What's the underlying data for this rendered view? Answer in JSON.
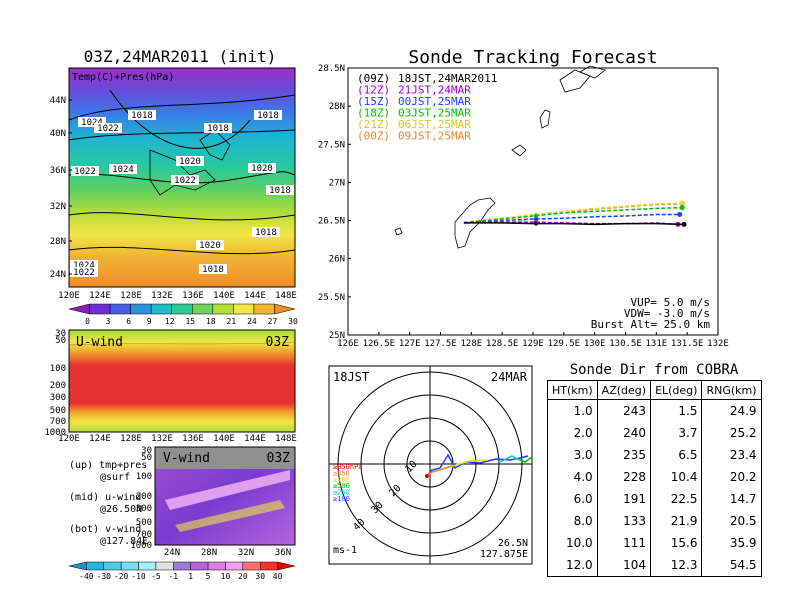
{
  "left_panel": {
    "title": "03Z,24MAR2011 (init)",
    "top_map": {
      "inner_label": "Temp(C)+Pres(hPa)",
      "lat_ticks": [
        "44N",
        "40N",
        "36N",
        "32N",
        "28N",
        "24N"
      ],
      "lon_ticks": [
        "120E",
        "124E",
        "128E",
        "132E",
        "136E",
        "140E",
        "144E",
        "148E"
      ],
      "colorbar_ticks": [
        "0",
        "3",
        "6",
        "9",
        "12",
        "15",
        "18",
        "21",
        "24",
        "27",
        "30"
      ],
      "isobar_labels": [
        "1024",
        "1022",
        "1018",
        "1018",
        "1018",
        "1020",
        "1020",
        "1022",
        "1024",
        "1022",
        "1018",
        "1020",
        "1018",
        "1024",
        "1022",
        "1018"
      ]
    },
    "u_wind": {
      "label": "U-wind",
      "time": "03Z",
      "p_ticks": [
        "30",
        "50",
        "100",
        "200",
        "300",
        "500",
        "700",
        "1000"
      ],
      "lon_ticks": [
        "120E",
        "124E",
        "128E",
        "132E",
        "136E",
        "140E",
        "144E",
        "148E"
      ]
    },
    "v_wind": {
      "label": "V-wind",
      "time": "03Z",
      "p_ticks": [
        "30",
        "50",
        "100",
        "200",
        "300",
        "500",
        "700",
        "1000"
      ],
      "lat_ticks": [
        "24N",
        "28N",
        "32N",
        "36N"
      ],
      "colorbar_ticks": [
        "-40",
        "-30",
        "-20",
        "-10",
        "-5",
        "-1",
        "1",
        "5",
        "10",
        "20",
        "30",
        "40"
      ]
    },
    "legend_notes": [
      {
        "a": "(up) tmp+pres",
        "b": "@surf"
      },
      {
        "a": "(mid) u-wind",
        "b": "@26.50N"
      },
      {
        "a": "(bot) v-wind",
        "b": "@127.84E"
      }
    ]
  },
  "chart_data": [
    {
      "type": "line",
      "title": "Sonde Tracking Forecast",
      "xlabel": "",
      "ylabel": "",
      "xlim": [
        126,
        132
      ],
      "ylim": [
        25,
        28.5
      ],
      "x_ticks": [
        "126E",
        "126.5E",
        "127E",
        "127.5E",
        "128E",
        "128.5E",
        "129E",
        "129.5E",
        "130E",
        "130.5E",
        "131E",
        "131.5E",
        "132E"
      ],
      "y_ticks": [
        "25N",
        "25.5N",
        "26N",
        "26.5N",
        "27N",
        "27.5N",
        "28N",
        "28.5N"
      ],
      "legend": [
        {
          "code": "(09Z)",
          "time": "18JST,24MAR2011",
          "color": "#000000"
        },
        {
          "code": "(12Z)",
          "time": "21JST,24MAR",
          "color": "#a000c8"
        },
        {
          "code": "(15Z)",
          "time": "00JST,25MAR",
          "color": "#1e3cff"
        },
        {
          "code": "(18Z)",
          "time": "03JST,25MAR",
          "color": "#00c000"
        },
        {
          "code": "(21Z)",
          "time": "06JST,25MAR",
          "color": "#e6dc32"
        },
        {
          "code": "(00Z)",
          "time": "09JST,25MAR",
          "color": "#f08228"
        }
      ],
      "series": [
        {
          "name": "(09Z)",
          "color": "#000000",
          "x": [
            127.88,
            128.5,
            129.0,
            129.5,
            130.0,
            130.5,
            131.0,
            131.45
          ],
          "y": [
            26.47,
            26.47,
            26.46,
            26.46,
            26.45,
            26.46,
            26.46,
            26.45
          ]
        },
        {
          "name": "(12Z)",
          "color": "#a000c8",
          "x": [
            127.88,
            128.5,
            129.0,
            129.5,
            130.0,
            130.5,
            131.0,
            131.35
          ],
          "y": [
            26.47,
            26.48,
            26.48,
            26.47,
            26.46,
            26.46,
            26.47,
            26.45
          ]
        },
        {
          "name": "(15Z)",
          "color": "#1e3cff",
          "x": [
            127.88,
            128.5,
            129.0,
            129.5,
            130.0,
            130.5,
            131.0,
            131.38
          ],
          "y": [
            26.47,
            26.5,
            26.52,
            26.53,
            26.55,
            26.56,
            26.58,
            26.58
          ]
        },
        {
          "name": "(18Z)",
          "color": "#00c000",
          "x": [
            127.88,
            128.5,
            129.0,
            129.5,
            130.0,
            130.5,
            131.0,
            131.42
          ],
          "y": [
            26.47,
            26.52,
            26.56,
            26.6,
            26.62,
            26.64,
            26.66,
            26.67
          ]
        },
        {
          "name": "(21Z)",
          "color": "#e6dc32",
          "x": [
            127.88,
            128.5,
            129.0,
            129.5,
            130.0,
            130.5,
            131.0,
            131.42
          ],
          "y": [
            26.48,
            26.53,
            26.58,
            26.62,
            26.66,
            26.69,
            26.72,
            26.73
          ]
        },
        {
          "name": "(00Z)",
          "color": "#f08228",
          "x": [
            127.88,
            128.5,
            129.0,
            129.5,
            130.0,
            130.5,
            131.0,
            131.42
          ],
          "y": [
            26.48,
            26.53,
            26.57,
            26.61,
            26.65,
            26.68,
            26.71,
            26.72
          ]
        }
      ],
      "annotations": {
        "vup": "VUP=  5.0  m/s",
        "vdw": "VDW= -3.0  m/s",
        "burst": "Burst Alt=  25.0  km"
      }
    },
    {
      "type": "table",
      "title": "Sonde Dir from COBRA",
      "columns": [
        "HT(km)",
        "AZ(deg)",
        "EL(deg)",
        "RNG(km)"
      ],
      "rows": [
        [
          "1.0",
          "243",
          "1.5",
          "24.9"
        ],
        [
          "2.0",
          "240",
          "3.7",
          "25.2"
        ],
        [
          "3.0",
          "235",
          "6.5",
          "23.4"
        ],
        [
          "4.0",
          "228",
          "10.4",
          "20.2"
        ],
        [
          "6.0",
          "191",
          "22.5",
          "14.7"
        ],
        [
          "8.0",
          "133",
          "21.9",
          "20.5"
        ],
        [
          "10.0",
          "111",
          "15.6",
          "35.9"
        ],
        [
          "12.0",
          "104",
          "12.3",
          "54.5"
        ]
      ]
    }
  ],
  "polar_panel": {
    "left_label": "18JST",
    "right_label": "24MAR",
    "ring_labels": [
      "10",
      "20",
      "30",
      "40"
    ],
    "level_labels": [
      {
        "text": "≥850hPa",
        "color": "#e00000"
      },
      {
        "text": "≥850",
        "color": "#f08228"
      },
      {
        "text": "≥700",
        "color": "#e6dc32"
      },
      {
        "text": "≥500",
        "color": "#00c000"
      },
      {
        "text": "≥250",
        "color": "#00c8c8"
      },
      {
        "text": "≥100",
        "color": "#1e3cff"
      }
    ],
    "unit": "ms-1",
    "location_lat": "26.5N",
    "location_lon": "127.875E"
  }
}
